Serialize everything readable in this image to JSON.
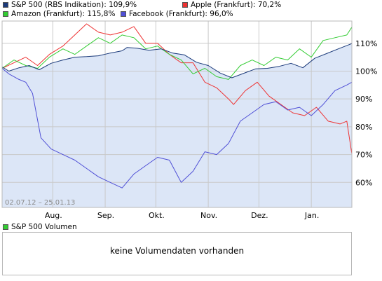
{
  "legend": {
    "items": [
      {
        "label": "S&P 500 (RBS Indikation): 109,9%",
        "color": "#1b3a7a"
      },
      {
        "label": "Apple (Frankfurt): 70,2%",
        "color": "#ee3333"
      },
      {
        "label": "Amazon (Frankfurt): 115,8%",
        "color": "#33cc33"
      },
      {
        "label": "Facebook (Frankfurt): 96,0%",
        "color": "#4f4fd6"
      }
    ]
  },
  "volume": {
    "legend_label": "S&P 500 Volumen",
    "legend_color": "#33cc33",
    "message": "keine Volumendaten vorhanden"
  },
  "date_range": "02.07.12 – 25.01.13",
  "chart_data": {
    "type": "line",
    "x_tick_labels": [
      "Aug.",
      "Sep.",
      "Okt.",
      "Nov.",
      "Dez.",
      "Jan."
    ],
    "x_tick_dates": [
      "2012-08-01",
      "2012-09-01",
      "2012-10-01",
      "2012-11-01",
      "2012-12-01",
      "2013-01-01"
    ],
    "x_range": [
      "2012-07-02",
      "2013-01-25"
    ],
    "y_tick_labels": [
      "60%",
      "70%",
      "80%",
      "90%",
      "100%",
      "110%"
    ],
    "y_ticks": [
      60,
      70,
      80,
      90,
      100,
      110
    ],
    "ylim": [
      51,
      118
    ],
    "grid": true,
    "series": [
      {
        "name": "S&P 500 (RBS Indikation)",
        "color": "#1b3a7a",
        "area": true,
        "area_color": "#dce6f7",
        "x": [
          "2012-07-02",
          "2012-07-06",
          "2012-07-12",
          "2012-07-18",
          "2012-07-24",
          "2012-07-31",
          "2012-08-07",
          "2012-08-14",
          "2012-08-21",
          "2012-08-28",
          "2012-09-04",
          "2012-09-11",
          "2012-09-14",
          "2012-09-20",
          "2012-09-27",
          "2012-10-04",
          "2012-10-11",
          "2012-10-18",
          "2012-10-25",
          "2012-11-01",
          "2012-11-08",
          "2012-11-15",
          "2012-11-22",
          "2012-11-29",
          "2012-12-06",
          "2012-12-13",
          "2012-12-20",
          "2012-12-27",
          "2013-01-03",
          "2013-01-10",
          "2013-01-17",
          "2013-01-25"
        ],
        "y": [
          101.5,
          100,
          101.2,
          102,
          100.5,
          102.8,
          104,
          105,
          105.2,
          105.5,
          106.5,
          107.3,
          108.5,
          108.2,
          107.5,
          108,
          106.5,
          105.8,
          103.2,
          102,
          99.3,
          97.6,
          99.2,
          100.8,
          101,
          101.7,
          102.8,
          101.2,
          104.6,
          106.3,
          108,
          109.9
        ]
      },
      {
        "name": "Apple (Frankfurt)",
        "color": "#ee3333",
        "x": [
          "2012-07-02",
          "2012-07-09",
          "2012-07-16",
          "2012-07-23",
          "2012-07-30",
          "2012-08-07",
          "2012-08-14",
          "2012-08-21",
          "2012-08-28",
          "2012-09-04",
          "2012-09-11",
          "2012-09-18",
          "2012-09-25",
          "2012-10-02",
          "2012-10-09",
          "2012-10-16",
          "2012-10-23",
          "2012-10-30",
          "2012-11-06",
          "2012-11-13",
          "2012-11-16",
          "2012-11-23",
          "2012-11-30",
          "2012-12-07",
          "2012-12-14",
          "2012-12-21",
          "2012-12-28",
          "2013-01-04",
          "2013-01-11",
          "2013-01-18",
          "2013-01-22",
          "2013-01-25"
        ],
        "y": [
          101,
          103,
          105,
          102,
          106,
          109,
          113,
          117,
          114,
          113,
          114,
          116,
          110,
          110,
          106,
          103,
          103,
          96,
          94,
          90,
          88,
          93,
          96,
          91,
          88,
          85,
          84,
          87,
          82,
          81,
          82,
          70.2
        ]
      },
      {
        "name": "Amazon (Frankfurt)",
        "color": "#33cc33",
        "x": [
          "2012-07-02",
          "2012-07-09",
          "2012-07-16",
          "2012-07-23",
          "2012-07-30",
          "2012-08-07",
          "2012-08-14",
          "2012-08-21",
          "2012-08-28",
          "2012-09-04",
          "2012-09-11",
          "2012-09-18",
          "2012-09-25",
          "2012-10-02",
          "2012-10-09",
          "2012-10-16",
          "2012-10-23",
          "2012-10-30",
          "2012-11-06",
          "2012-11-13",
          "2012-11-20",
          "2012-11-27",
          "2012-12-04",
          "2012-12-11",
          "2012-12-18",
          "2012-12-25",
          "2013-01-01",
          "2013-01-08",
          "2013-01-15",
          "2013-01-22",
          "2013-01-25"
        ],
        "y": [
          101,
          104,
          102,
          101,
          105,
          108,
          106,
          109,
          112,
          110,
          113,
          112,
          108,
          109,
          106,
          104,
          99,
          101,
          98,
          97,
          102,
          104,
          102,
          105,
          104,
          108,
          105,
          111,
          112,
          113,
          115.8
        ]
      },
      {
        "name": "Facebook (Frankfurt)",
        "color": "#4f4fd6",
        "x": [
          "2012-07-02",
          "2012-07-06",
          "2012-07-12",
          "2012-07-16",
          "2012-07-20",
          "2012-07-25",
          "2012-07-31",
          "2012-08-07",
          "2012-08-14",
          "2012-08-21",
          "2012-08-28",
          "2012-09-04",
          "2012-09-11",
          "2012-09-18",
          "2012-09-25",
          "2012-10-02",
          "2012-10-09",
          "2012-10-16",
          "2012-10-23",
          "2012-10-30",
          "2012-11-06",
          "2012-11-13",
          "2012-11-20",
          "2012-11-27",
          "2012-12-04",
          "2012-12-11",
          "2012-12-18",
          "2012-12-25",
          "2013-01-01",
          "2013-01-08",
          "2013-01-15",
          "2013-01-22",
          "2013-01-25"
        ],
        "y": [
          101,
          99,
          97,
          96,
          92,
          76,
          72,
          70,
          68,
          65,
          62,
          60,
          58,
          63,
          66,
          69,
          68,
          60,
          64,
          71,
          70,
          74,
          82,
          85,
          88,
          89,
          86,
          87,
          84,
          88,
          93,
          95,
          96.0
        ]
      }
    ]
  }
}
